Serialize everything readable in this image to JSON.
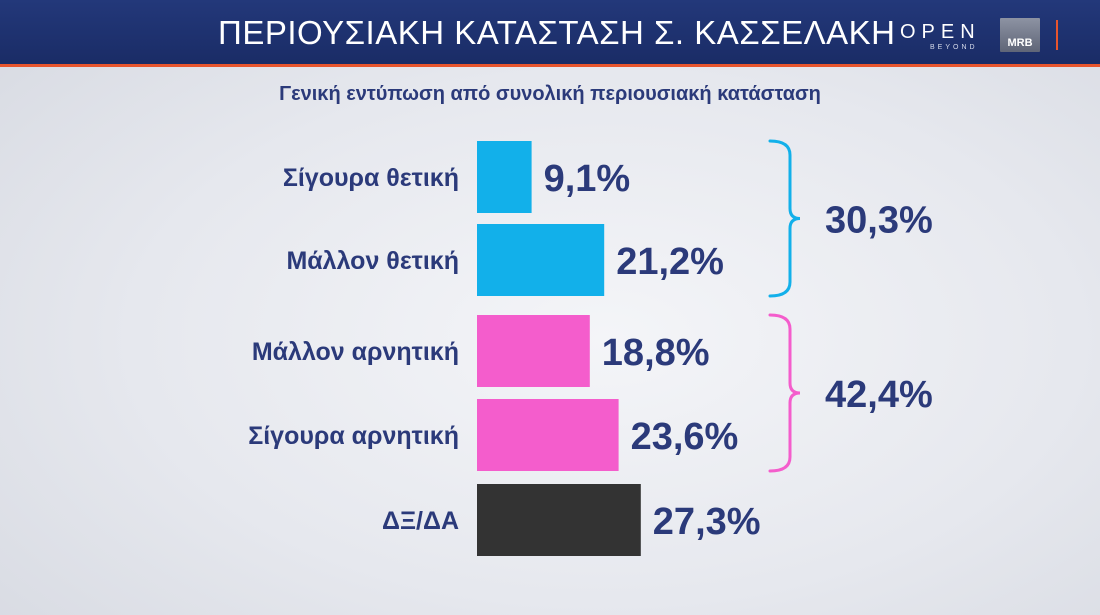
{
  "header": {
    "title": "ΠΕΡΙΟΥΣΙΑΚΗ ΚΑΤΑΣΤΑΣΗ  Σ. ΚΑΣΣΕΛΑΚΗ",
    "logo_open": "OPEN",
    "logo_beyond": "BEYOND",
    "logo_mrb": "MRB"
  },
  "colors": {
    "header_bg": "#1f3270",
    "accent": "#e8552d",
    "positive": "#12b0ea",
    "negative": "#f45dcc",
    "unknown": "#333333",
    "text": "#2b3a7a"
  },
  "chart_data": {
    "type": "bar",
    "orientation": "horizontal",
    "title": "ΠΕΡΙΟΥΣΙΑΚΗ ΚΑΤΑΣΤΑΣΗ  Σ. ΚΑΣΣΕΛΑΚΗ",
    "subtitle": "Γενική εντύπωση από συνολική περιουσιακή κατάσταση",
    "categories": [
      "Σίγουρα θετική",
      "Μάλλον θετική",
      "Μάλλον αρνητική",
      "Σίγουρα αρνητική",
      "ΔΞ/ΔΑ"
    ],
    "values": [
      9.1,
      21.2,
      18.8,
      23.6,
      27.3
    ],
    "labels": [
      "9,1%",
      "21,2%",
      "18,8%",
      "23,6%",
      "27,3%"
    ],
    "bar_colors": [
      "#12b0ea",
      "#12b0ea",
      "#f45dcc",
      "#f45dcc",
      "#333333"
    ],
    "groups": [
      {
        "range": [
          0,
          1
        ],
        "total": 30.3,
        "label": "30,3%",
        "color": "#12b0ea"
      },
      {
        "range": [
          2,
          3
        ],
        "total": 42.4,
        "label": "42,4%",
        "color": "#f45dcc"
      }
    ],
    "unit": "%",
    "grid": false,
    "legend": "none"
  }
}
